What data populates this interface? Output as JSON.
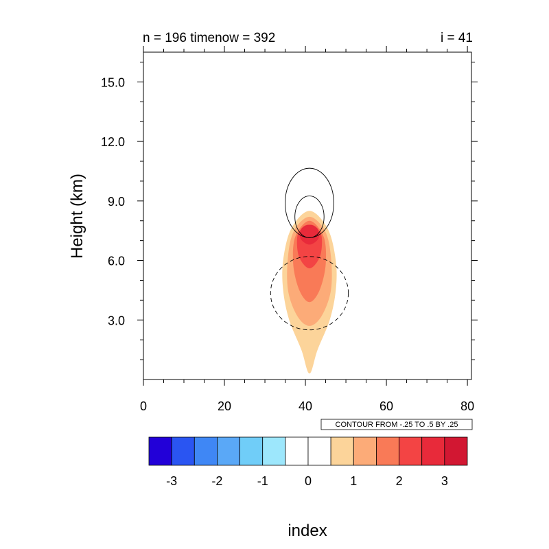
{
  "chart_data": {
    "type": "contour",
    "title_left": "n = 196 timenow = 392",
    "title_right": "i = 41",
    "xlabel": "index",
    "ylabel": "Height (km)",
    "xlim": [
      0,
      81
    ],
    "ylim": [
      0,
      16.5
    ],
    "x_ticks": [
      0,
      20,
      40,
      60,
      80
    ],
    "x_tick_labels": [
      "0",
      "20",
      "40",
      "60",
      "80"
    ],
    "y_ticks": [
      3,
      6,
      9,
      12,
      15
    ],
    "y_tick_labels": [
      "3.0",
      "6.0",
      "9.0",
      "12.0",
      "15.0"
    ],
    "contour_note": "CONTOUR FROM -.25 TO .5 BY .25",
    "colorbar": {
      "colors": [
        "#2200d8",
        "#2a55f2",
        "#3f87f5",
        "#5aa8f7",
        "#70cdf8",
        "#9de7fc",
        "#ffffff",
        "#ffffff",
        "#fcd49a",
        "#fcab78",
        "#f97a57",
        "#f34444",
        "#e82a3a",
        "#d21732"
      ],
      "labels": [
        "-3",
        "-2",
        "-1",
        "0",
        "1",
        "2",
        "3"
      ]
    },
    "filled_field": {
      "center_x": 41,
      "levels": [
        {
          "value": 0.5,
          "color": "#fcd49a",
          "outline": [
            [
              41,
              0.3
            ],
            [
              43,
              1.5
            ],
            [
              46,
              3
            ],
            [
              47.5,
              4.5
            ],
            [
              47.5,
              6
            ],
            [
              45.5,
              7.6
            ],
            [
              41,
              8.5
            ],
            [
              36.5,
              7.6
            ],
            [
              34.5,
              6
            ],
            [
              34.5,
              4.5
            ],
            [
              36,
              3
            ],
            [
              39,
              1.5
            ]
          ]
        },
        {
          "value": 1.5,
          "color": "#fcab78",
          "outline": [
            [
              41,
              2.7
            ],
            [
              44,
              3.2
            ],
            [
              46.3,
              4.5
            ],
            [
              46.3,
              6.2
            ],
            [
              44.8,
              7.5
            ],
            [
              41,
              8.2
            ],
            [
              37.2,
              7.5
            ],
            [
              35.7,
              6.2
            ],
            [
              35.7,
              4.5
            ],
            [
              38,
              3.2
            ]
          ]
        },
        {
          "value": 2.5,
          "color": "#f97a57",
          "outline": [
            [
              41,
              3.9
            ],
            [
              43.5,
              4.5
            ],
            [
              45,
              5.8
            ],
            [
              44.5,
              7.2
            ],
            [
              41,
              8
            ],
            [
              37.5,
              7.2
            ],
            [
              37,
              5.8
            ],
            [
              38.5,
              4.5
            ]
          ]
        },
        {
          "value": 3.0,
          "color": "#f34444",
          "outline": [
            [
              41,
              5.6
            ],
            [
              43.6,
              6.2
            ],
            [
              44,
              7.2
            ],
            [
              42.5,
              7.7
            ],
            [
              41,
              7.8
            ],
            [
              39.5,
              7.7
            ],
            [
              38,
              7.2
            ],
            [
              38.4,
              6.2
            ]
          ]
        },
        {
          "value": 3.5,
          "color": "#e82a3a",
          "outline": [
            [
              41,
              6.8
            ],
            [
              43.2,
              7.1
            ],
            [
              43,
              7.6
            ],
            [
              41,
              7.8
            ],
            [
              39,
              7.6
            ],
            [
              38.8,
              7.1
            ]
          ]
        }
      ]
    },
    "line_contours": [
      {
        "level": 0.25,
        "style": "solid",
        "cx": 41,
        "cy": 8.9,
        "rx": 6,
        "ry": 1.75
      },
      {
        "level": 0.5,
        "style": "solid",
        "cx": 41,
        "cy": 8.2,
        "rx": 3.6,
        "ry": 1.05
      },
      {
        "level": -0.25,
        "style": "dashed",
        "cx": 41,
        "cy": 4.35,
        "rx": 9.6,
        "ry": 1.85
      }
    ]
  }
}
